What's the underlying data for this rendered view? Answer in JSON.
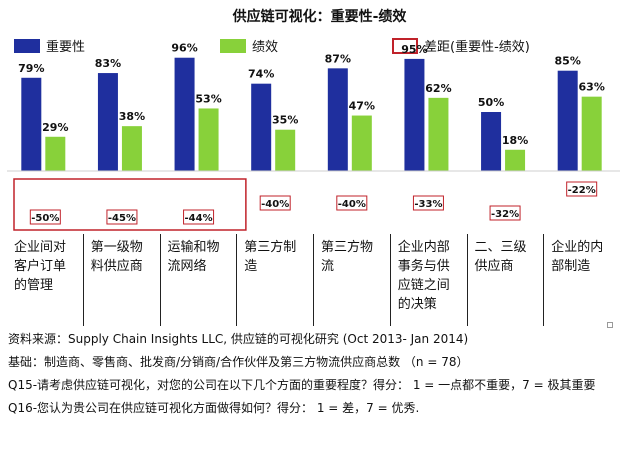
{
  "chart_data": {
    "type": "bar",
    "title": "供应链可视化：重要性-绩效",
    "categories": [
      "企业间对\n客户订单\n的管理",
      "第一级物\n料供应商",
      "运输和物\n流网络",
      "第三方制\n造",
      "第三方物\n流",
      "企业内部\n事务与供\n应链之间\n的决策",
      "二、三级\n供应商",
      "企业的内\n部制造"
    ],
    "series": [
      {
        "name": "重要性",
        "color": "#1f2f9e",
        "values": [
          79,
          83,
          96,
          74,
          87,
          95,
          50,
          85
        ],
        "labels": [
          "79%",
          "83%",
          "96%",
          "74%",
          "87%",
          "95%",
          "50%",
          "85%"
        ]
      },
      {
        "name": "绩效",
        "color": "#88d13a",
        "values": [
          29,
          38,
          53,
          35,
          47,
          62,
          18,
          63
        ],
        "labels": [
          "29%",
          "38%",
          "53%",
          "35%",
          "47%",
          "62%",
          "18%",
          "63%"
        ]
      }
    ],
    "gap": {
      "name": "差距(重要性-绩效)",
      "values": [
        -50,
        -45,
        -44,
        -40,
        -40,
        -33,
        -32,
        -22
      ],
      "labels": [
        "-50%",
        "-45%",
        "-44%",
        "-40%",
        "-40%",
        "-33%",
        "-32%",
        "-22%"
      ],
      "highlight_count": 3,
      "highlight_color": "#c0222a"
    },
    "ylim": [
      0,
      100
    ],
    "legend_position": "top"
  },
  "notes": {
    "source": "资料来源：Supply Chain Insights LLC, 供应链的可视化研究 (Oct 2013- Jan 2014)",
    "basis": "基础：制造商、零售商、批发商/分销商/合作伙伴及第三方物流供应商总数 （n = 78）",
    "q15": "Q15-请考虑供应链可视化，对您的公司在以下几个方面的重要程度？得分：  1 = 一点都不重要，7 = 极其重要",
    "q16": "Q16-您认为贵公司在供应链可视化方面做得如何？得分：  1 = 差，7 = 优秀."
  }
}
